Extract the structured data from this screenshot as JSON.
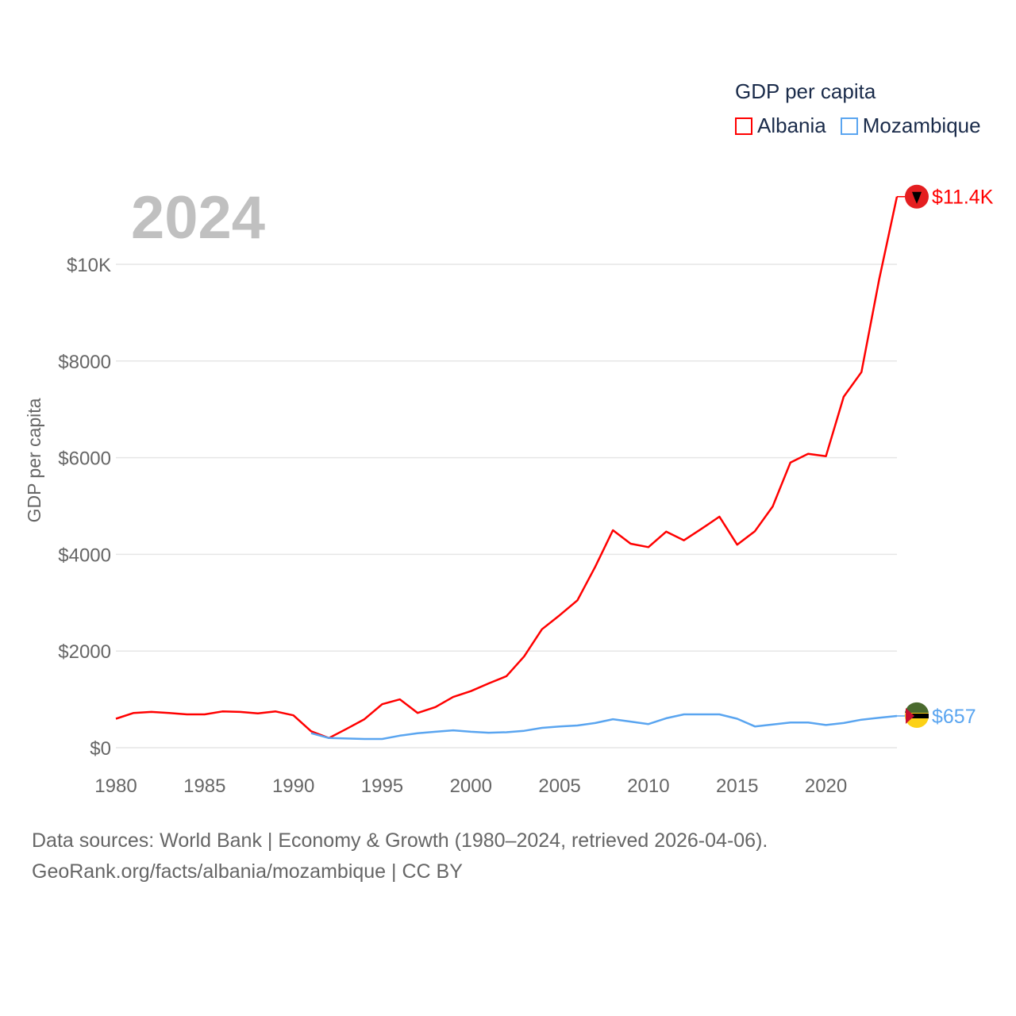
{
  "chart_data": {
    "type": "line",
    "title": "GDP per capita",
    "year_label": "2024",
    "xlabel": "",
    "ylabel": "GDP per capita",
    "xlim": [
      1980,
      2024
    ],
    "ylim": [
      0,
      11400
    ],
    "yticks": [
      {
        "v": 0,
        "label": "$0"
      },
      {
        "v": 2000,
        "label": "$2000"
      },
      {
        "v": 4000,
        "label": "$4000"
      },
      {
        "v": 6000,
        "label": "$6000"
      },
      {
        "v": 8000,
        "label": "$8000"
      },
      {
        "v": 10000,
        "label": "$10K"
      }
    ],
    "xticks": [
      1980,
      1985,
      1990,
      1995,
      2000,
      2005,
      2010,
      2015,
      2020
    ],
    "grid": true,
    "legend_position": "top-right",
    "series": [
      {
        "name": "Albania",
        "color": "#ff0000",
        "end_label": "$11.4K",
        "start_year": 1980,
        "values": [
          600,
          720,
          740,
          720,
          690,
          690,
          750,
          740,
          710,
          750,
          670,
          340,
          200,
          390,
          590,
          900,
          1000,
          720,
          840,
          1050,
          1170,
          1330,
          1480,
          1890,
          2450,
          2740,
          3050,
          3740,
          4500,
          4220,
          4150,
          4470,
          4290,
          4530,
          4780,
          4200,
          4480,
          4990,
          5900,
          6080,
          6030,
          7260,
          7770,
          9690,
          11400
        ]
      },
      {
        "name": "Mozambique",
        "color": "#5aa5f0",
        "end_label": "$657",
        "start_year": 1991,
        "values": [
          300,
          200,
          190,
          180,
          180,
          250,
          300,
          330,
          360,
          330,
          310,
          320,
          350,
          410,
          440,
          460,
          510,
          590,
          540,
          490,
          610,
          690,
          690,
          690,
          600,
          440,
          480,
          520,
          520,
          470,
          510,
          580,
          620,
          657
        ]
      }
    ]
  },
  "footer": {
    "line1": "Data sources: World Bank | Economy & Growth (1980–2024, retrieved 2026-04-06).",
    "line2": "GeoRank.org/facts/albania/mozambique | CC BY"
  }
}
